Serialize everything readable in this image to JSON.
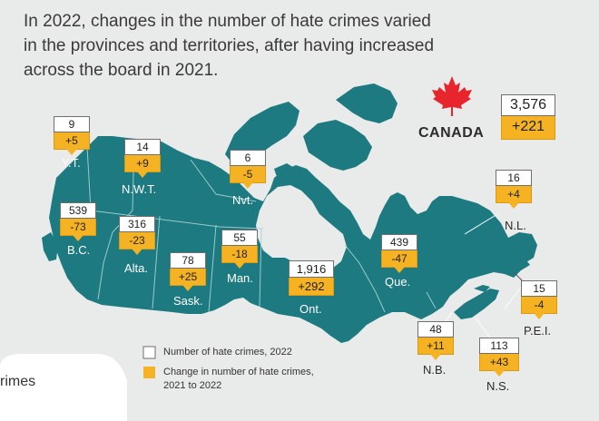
{
  "title": {
    "line1": "In 2022, changes in the number of hate crimes varied",
    "line2": "in the provinces and territories, after having increased",
    "line3": "across the board in 2021."
  },
  "national": {
    "label": "CANADA",
    "count": "3,576",
    "change": "+221",
    "icon": "maple-leaf-icon"
  },
  "regions": {
    "yt": {
      "abbr": "Y.T.",
      "count": "9",
      "change": "+5"
    },
    "nwt": {
      "abbr": "N.W.T.",
      "count": "14",
      "change": "+9"
    },
    "nvt": {
      "abbr": "Nvt.",
      "count": "6",
      "change": "-5"
    },
    "bc": {
      "abbr": "B.C.",
      "count": "539",
      "change": "-73"
    },
    "ab": {
      "abbr": "Alta.",
      "count": "316",
      "change": "-23"
    },
    "sk": {
      "abbr": "Sask.",
      "count": "78",
      "change": "+25"
    },
    "mb": {
      "abbr": "Man.",
      "count": "55",
      "change": "-18"
    },
    "on": {
      "abbr": "Ont.",
      "count": "1,916",
      "change": "+292"
    },
    "qc": {
      "abbr": "Que.",
      "count": "439",
      "change": "-47"
    },
    "nl": {
      "abbr": "N.L.",
      "count": "16",
      "change": "+4"
    },
    "pe": {
      "abbr": "P.E.I.",
      "count": "15",
      "change": "-4"
    },
    "nb": {
      "abbr": "N.B.",
      "count": "48",
      "change": "+11"
    },
    "ns": {
      "abbr": "N.S.",
      "count": "113",
      "change": "+43"
    }
  },
  "legend": {
    "count_label": "Number of hate crimes, 2022",
    "change_label_line1": "Change in number of hate crimes,",
    "change_label_line2": "2021 to 2022"
  },
  "footer_fragment": "rimes",
  "colors": {
    "land": "#1c7a80",
    "water": "#e9eaea",
    "border": "#a9d3d4",
    "change_box": "#f5b324",
    "count_box": "#ffffff",
    "leaf": "#e8242c"
  }
}
